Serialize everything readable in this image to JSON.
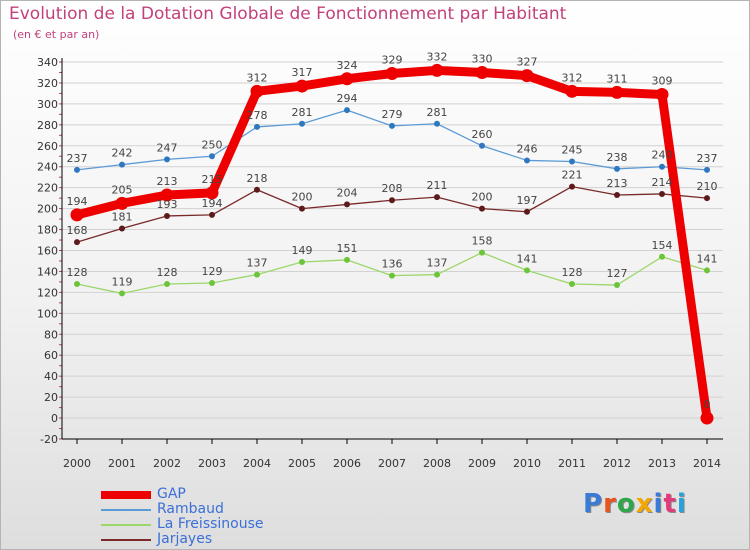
{
  "header": {
    "title": "Evolution de la Dotation Globale de Fonctionnement par Habitant",
    "subtitle": "(en € et par an)"
  },
  "logo": {
    "text": "Proxiti",
    "letter_colors": [
      "#3a7bd5",
      "#e8541e",
      "#2ea64a",
      "#f2a800",
      "#3a7bd5",
      "#e23a7a",
      "#27a3dc"
    ]
  },
  "colors": {
    "axis_text": "#333333",
    "value_text": "#444444",
    "grid": "#d2d2d2",
    "axis_line": "#000000"
  },
  "chart_data": {
    "type": "line",
    "x": [
      "2000",
      "2001",
      "2002",
      "2003",
      "2004",
      "2005",
      "2006",
      "2007",
      "2008",
      "2009",
      "2010",
      "2011",
      "2012",
      "2013",
      "2014"
    ],
    "ylim": [
      -20,
      340
    ],
    "yticks": [
      -20,
      0,
      20,
      40,
      60,
      80,
      100,
      120,
      140,
      160,
      180,
      200,
      220,
      240,
      260,
      280,
      300,
      320,
      340
    ],
    "grid": "horizontal",
    "legend_position": "bottom-left",
    "series": [
      {
        "name": "GAP",
        "color": "#ee0000",
        "marker_color": "#ee0000",
        "emphasis": true,
        "values": [
          194,
          205,
          213,
          215,
          312,
          317,
          324,
          329,
          332,
          330,
          327,
          312,
          311,
          309,
          0
        ]
      },
      {
        "name": "Rambaud",
        "color": "#5b9bd5",
        "marker_color": "#2f78c0",
        "emphasis": false,
        "values": [
          237,
          242,
          247,
          250,
          278,
          281,
          294,
          279,
          281,
          260,
          246,
          245,
          238,
          240,
          237
        ]
      },
      {
        "name": "La Freissinouse",
        "color": "#9bd76a",
        "marker_color": "#6cc43a",
        "emphasis": false,
        "values": [
          128,
          119,
          128,
          129,
          137,
          149,
          151,
          136,
          137,
          158,
          141,
          128,
          127,
          154,
          141
        ]
      },
      {
        "name": "Jarjayes",
        "color": "#7a2a2a",
        "marker_color": "#5e1a1a",
        "emphasis": false,
        "values": [
          168,
          181,
          193,
          194,
          218,
          200,
          204,
          208,
          211,
          200,
          197,
          221,
          213,
          214,
          210
        ]
      }
    ]
  }
}
